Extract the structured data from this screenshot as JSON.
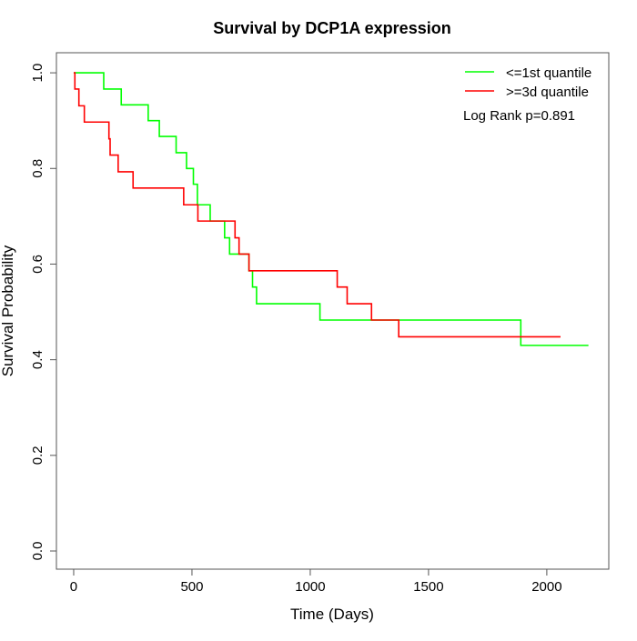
{
  "chart_data": {
    "type": "line",
    "subtype": "kaplan-meier step",
    "title": "Survival by DCP1A expression",
    "xlabel": "Time (Days)",
    "ylabel": "Survival Probability",
    "xlim": [
      -73,
      2262
    ],
    "ylim": [
      -0.038,
      1.042
    ],
    "xticks": [
      0,
      500,
      1000,
      1500,
      2000
    ],
    "xtick_labels": [
      "0",
      "500",
      "1000",
      "1500",
      "2000"
    ],
    "yticks": [
      0,
      0.2,
      0.4,
      0.6,
      0.8,
      1.0
    ],
    "ytick_labels": [
      "0.0",
      "0.2",
      "0.4",
      "0.6",
      "0.8",
      "1.0"
    ],
    "grid": false,
    "legend_position": "top-right",
    "annotation": "Log Rank p=0.891",
    "series": [
      {
        "name": "<=1st quantile",
        "color": "#00ff00",
        "times": [
          0,
          127,
          201,
          315,
          362,
          433,
          477,
          506,
          523,
          577,
          638,
          659,
          741,
          756,
          773,
          1041,
          1890,
          2176
        ],
        "survival": [
          1.0,
          0.966,
          0.933,
          0.9,
          0.867,
          0.833,
          0.8,
          0.767,
          0.724,
          0.69,
          0.655,
          0.621,
          0.586,
          0.552,
          0.517,
          0.483,
          0.43,
          0.43
        ]
      },
      {
        "name": ">=3d quantile",
        "color": "#ff0000",
        "times": [
          0,
          5,
          22,
          45,
          149,
          154,
          188,
          251,
          465,
          525,
          682,
          699,
          741,
          1114,
          1156,
          1259,
          1374,
          2058
        ],
        "survival": [
          1.0,
          0.966,
          0.931,
          0.897,
          0.862,
          0.828,
          0.793,
          0.759,
          0.724,
          0.69,
          0.655,
          0.621,
          0.586,
          0.552,
          0.517,
          0.483,
          0.448,
          0.448
        ]
      }
    ]
  }
}
